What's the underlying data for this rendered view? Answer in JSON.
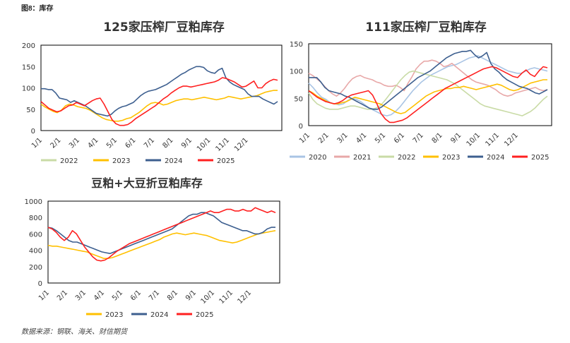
{
  "figure_label": "图8：库存",
  "source": "数据来源：钢联、海关、财信期货",
  "colors": {
    "2020": "#a9c4e4",
    "2021": "#e8a8a8",
    "2022": "#c9dba6",
    "2023": "#ffc000",
    "2024": "#3d5f8f",
    "2025": "#ff2020"
  },
  "chart_data": [
    {
      "type": "line",
      "title": "125家压榨厂豆粕库存",
      "xlabel": "",
      "ylabel": "",
      "ylim": [
        0,
        200
      ],
      "yticks": [
        0,
        50,
        100,
        150,
        200
      ],
      "x_ticks": [
        "1/1",
        "2/1",
        "3/1",
        "4/1",
        "5/1",
        "6/1",
        "7/1",
        "8/1",
        "9/1",
        "10/1",
        "11/1",
        "12/1"
      ],
      "legend": "bottom",
      "series": [
        {
          "name": "2022",
          "values": []
        },
        {
          "name": "2023",
          "values": [
            62,
            55,
            50,
            45,
            42,
            48,
            58,
            62,
            60,
            56,
            54,
            52,
            48,
            42,
            36,
            30,
            26,
            24,
            22,
            22,
            24,
            28,
            30,
            36,
            42,
            50,
            58,
            64,
            66,
            64,
            60,
            62,
            66,
            70,
            72,
            74,
            74,
            72,
            74,
            76,
            78,
            76,
            74,
            72,
            74,
            76,
            80,
            78,
            76,
            74,
            76,
            78,
            80,
            82,
            86,
            90,
            92,
            94,
            94
          ]
        },
        {
          "name": "2024",
          "values": [
            98,
            98,
            96,
            96,
            88,
            76,
            74,
            72,
            66,
            70,
            66,
            62,
            58,
            52,
            46,
            40,
            38,
            36,
            34,
            38,
            46,
            52,
            56,
            58,
            62,
            66,
            74,
            82,
            88,
            92,
            94,
            96,
            100,
            104,
            108,
            114,
            120,
            126,
            132,
            136,
            142,
            146,
            150,
            150,
            148,
            140,
            136,
            134,
            142,
            146,
            124,
            114,
            108,
            104,
            100,
            96,
            86,
            80,
            80,
            80,
            74,
            70,
            66,
            62,
            68
          ]
        },
        {
          "name": "2025",
          "values": [
            68,
            60,
            52,
            48,
            44,
            46,
            52,
            58,
            60,
            66,
            62,
            58,
            64,
            70,
            74,
            76,
            62,
            44,
            26,
            16,
            12,
            12,
            14,
            20,
            28,
            34,
            40,
            46,
            52,
            58,
            66,
            74,
            80,
            88,
            94,
            100,
            104,
            104,
            102,
            104,
            106,
            108,
            110,
            112,
            114,
            118,
            124,
            122,
            118,
            114,
            108,
            102,
            104,
            110,
            116,
            100,
            100,
            110,
            116,
            120,
            118
          ]
        }
      ]
    },
    {
      "type": "line",
      "title": "111家压榨厂豆粕库存",
      "xlabel": "",
      "ylabel": "",
      "ylim": [
        0,
        150
      ],
      "yticks": [
        0,
        50,
        100,
        150
      ],
      "x_ticks": [
        "1/1",
        "2/1",
        "3/1",
        "4/1",
        "5/1",
        "6/1",
        "7/1",
        "8/1",
        "9/1",
        "10/1",
        "11/1",
        "12/1"
      ],
      "legend": "bottom",
      "series": [
        {
          "name": "2020",
          "values": [
            78,
            70,
            60,
            52,
            48,
            42,
            40,
            38,
            40,
            46,
            50,
            48,
            44,
            38,
            32,
            28,
            24,
            20,
            18,
            20,
            26,
            34,
            44,
            54,
            64,
            72,
            80,
            86,
            92,
            96,
            100,
            104,
            108,
            110,
            112,
            116,
            120,
            124,
            126,
            128,
            124,
            120,
            116,
            112,
            108,
            104,
            100,
            98,
            96,
            96,
            100,
            104,
            106,
            104,
            102,
            100
          ]
        },
        {
          "name": "2021",
          "values": [
            96,
            92,
            86,
            80,
            72,
            64,
            58,
            54,
            60,
            68,
            78,
            86,
            90,
            92,
            88,
            86,
            84,
            80,
            78,
            74,
            72,
            72,
            74,
            70,
            64,
            78,
            90,
            104,
            112,
            118,
            118,
            120,
            118,
            114,
            108,
            110,
            114,
            108,
            102,
            96,
            90,
            84,
            80,
            78,
            76,
            74,
            70,
            66,
            60,
            56,
            54,
            56,
            60,
            62,
            64,
            66,
            68,
            70,
            66,
            64,
            66
          ]
        },
        {
          "name": "2022",
          "values": [
            60,
            48,
            40,
            36,
            32,
            30,
            30,
            30,
            32,
            34,
            36,
            36,
            34,
            32,
            30,
            30,
            32,
            36,
            44,
            54,
            64,
            74,
            84,
            92,
            98,
            100,
            98,
            96,
            94,
            92,
            90,
            88,
            86,
            84,
            80,
            76,
            70,
            64,
            58,
            52,
            46,
            40,
            36,
            34,
            32,
            30,
            28,
            26,
            24,
            22,
            20,
            18,
            22,
            26,
            32,
            40,
            48,
            54
          ]
        },
        {
          "name": "2023",
          "values": [
            64,
            60,
            54,
            50,
            46,
            42,
            40,
            40,
            42,
            44,
            48,
            52,
            50,
            48,
            46,
            44,
            42,
            40,
            36,
            32,
            28,
            24,
            22,
            24,
            30,
            36,
            42,
            48,
            54,
            58,
            62,
            64,
            66,
            68,
            68,
            70,
            70,
            72,
            70,
            68,
            66,
            68,
            70,
            72,
            74,
            76,
            74,
            70,
            66,
            64,
            66,
            70,
            74,
            78,
            80,
            82,
            84,
            84
          ]
        },
        {
          "name": "2024",
          "values": [
            88,
            88,
            88,
            80,
            70,
            64,
            62,
            60,
            58,
            54,
            52,
            48,
            44,
            40,
            36,
            32,
            30,
            30,
            34,
            40,
            46,
            52,
            58,
            64,
            70,
            76,
            82,
            88,
            92,
            96,
            100,
            106,
            112,
            118,
            124,
            128,
            132,
            134,
            136,
            136,
            138,
            130,
            124,
            128,
            134,
            114,
            104,
            98,
            90,
            84,
            80,
            76,
            72,
            70,
            68,
            64,
            60,
            58,
            62,
            66
          ]
        },
        {
          "name": "2025",
          "values": [
            64,
            58,
            52,
            48,
            44,
            42,
            40,
            42,
            46,
            52,
            56,
            58,
            60,
            62,
            64,
            56,
            40,
            22,
            12,
            6,
            6,
            8,
            10,
            14,
            20,
            26,
            32,
            38,
            44,
            50,
            56,
            62,
            68,
            72,
            76,
            80,
            84,
            88,
            92,
            96,
            100,
            104,
            106,
            108,
            106,
            102,
            98,
            94,
            90,
            88,
            96,
            102,
            94,
            90,
            100,
            108,
            106
          ]
        }
      ]
    },
    {
      "type": "line",
      "title": "豆粕+大豆折豆粕库存",
      "xlabel": "",
      "ylabel": "",
      "ylim": [
        0,
        1000
      ],
      "yticks": [
        0,
        200,
        400,
        600,
        800,
        1000
      ],
      "x_ticks": [
        "1/1",
        "2/1",
        "3/1",
        "4/1",
        "5/1",
        "6/1",
        "7/1",
        "8/1",
        "9/1",
        "10/1",
        "11/1",
        "12/1"
      ],
      "legend": "bottom",
      "series": [
        {
          "name": "2023",
          "values": [
            460,
            450,
            450,
            440,
            430,
            420,
            410,
            400,
            390,
            380,
            360,
            340,
            320,
            300,
            300,
            310,
            330,
            350,
            370,
            390,
            410,
            430,
            450,
            470,
            490,
            510,
            530,
            560,
            580,
            600,
            610,
            600,
            590,
            600,
            610,
            600,
            590,
            580,
            560,
            540,
            520,
            510,
            500,
            490,
            500,
            520,
            540,
            560,
            580,
            600,
            610,
            620,
            630,
            640
          ]
        },
        {
          "name": "2024",
          "values": [
            680,
            670,
            640,
            600,
            560,
            520,
            500,
            500,
            480,
            460,
            440,
            420,
            400,
            380,
            370,
            360,
            380,
            400,
            420,
            440,
            460,
            480,
            500,
            520,
            540,
            560,
            580,
            600,
            620,
            640,
            660,
            700,
            740,
            780,
            820,
            840,
            840,
            860,
            860,
            840,
            820,
            780,
            740,
            720,
            700,
            680,
            660,
            640,
            640,
            620,
            600,
            600,
            620,
            660,
            680,
            680
          ]
        },
        {
          "name": "2025",
          "values": [
            680,
            660,
            620,
            560,
            520,
            560,
            640,
            600,
            520,
            440,
            380,
            320,
            280,
            270,
            280,
            310,
            350,
            390,
            420,
            450,
            480,
            500,
            520,
            540,
            560,
            580,
            600,
            620,
            640,
            660,
            680,
            700,
            720,
            740,
            760,
            780,
            800,
            820,
            840,
            860,
            880,
            860,
            860,
            880,
            900,
            900,
            880,
            880,
            900,
            880,
            880,
            920,
            900,
            880,
            860,
            880,
            860
          ]
        }
      ]
    }
  ]
}
